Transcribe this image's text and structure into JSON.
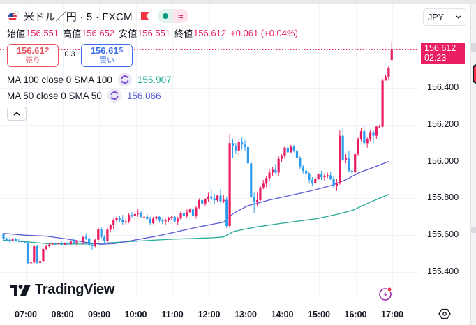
{
  "header": {
    "symbol_title": "米ドル／円 · 5 · FXCM",
    "flag_icon": "us-flag-icon",
    "status_left_icon": "market-open-dot-icon",
    "status_right_icon": "delayed-approx-icon",
    "status_right_glyph": "≈"
  },
  "ohlc": {
    "open_label": "始値",
    "open": "156.551",
    "high_label": "高値",
    "high": "156.652",
    "low_label": "安値",
    "low": "156.551",
    "close_label": "終値",
    "close": "156.612",
    "change": "+0.061 (+0.04%)"
  },
  "trade": {
    "sell_price_main": "156.61",
    "sell_price_pip": "2",
    "sell_label": "売り",
    "spread": "0.3",
    "buy_price_main": "156.61",
    "buy_price_pip": "5",
    "buy_label": "買い"
  },
  "indicators": [
    {
      "label": "MA 100 close 0 SMA 100",
      "value": "155.907",
      "color": "#22ab94"
    },
    {
      "label": "MA 50 close 0 SMA 50",
      "value": "156.066",
      "color": "#5b5bd6"
    }
  ],
  "collapse_glyph": "︿",
  "currency_select": {
    "value": "JPY",
    "chevron": "⌄"
  },
  "price_tag": {
    "price": "156.612",
    "countdown": "02:23",
    "color": "#e91e63"
  },
  "branding": {
    "name": "TradingView"
  },
  "colors": {
    "up": "#e91e63",
    "down": "#2d9cf0",
    "ma100": "#22ab94",
    "ma50": "#5b5bd6",
    "grid": "#f0f3fa"
  },
  "chart_data": {
    "type": "candlestick",
    "title": "米ドル／円 · 5 · FXCM",
    "interval": "5 minutes",
    "yaxis_ticks": [
      "156.400",
      "156.200",
      "156.000",
      "155.800",
      "155.600",
      "155.400"
    ],
    "xaxis_ticks": [
      "07:00",
      "08:00",
      "09:00",
      "10:00",
      "11:00",
      "12:00",
      "13:00",
      "14:00",
      "15:00",
      "16:00",
      "17:00"
    ],
    "ylim": [
      155.28,
      156.72
    ],
    "last_price": 156.612,
    "series": [
      {
        "name": "MA 100 close 0 SMA 100",
        "type": "line",
        "last": 155.907,
        "points": [
          [
            0,
            155.573
          ],
          [
            30,
            155.565
          ],
          [
            60,
            155.555
          ],
          [
            90,
            155.552
          ],
          [
            120,
            155.552
          ],
          [
            150,
            155.558
          ],
          [
            180,
            155.565
          ],
          [
            210,
            155.572
          ],
          [
            240,
            155.578
          ],
          [
            270,
            155.582
          ],
          [
            300,
            155.586
          ],
          [
            315,
            155.59
          ],
          [
            330,
            155.62
          ],
          [
            360,
            155.643
          ],
          [
            390,
            155.66
          ],
          [
            420,
            155.675
          ],
          [
            450,
            155.69
          ],
          [
            480,
            155.715
          ],
          [
            500,
            155.735
          ],
          [
            520,
            155.77
          ],
          [
            552,
            155.822
          ]
        ]
      },
      {
        "name": "MA 50 close 0 SMA 50",
        "type": "line",
        "last": 156.066,
        "points": [
          [
            0,
            155.61
          ],
          [
            30,
            155.6
          ],
          [
            60,
            155.595
          ],
          [
            90,
            155.58
          ],
          [
            120,
            155.56
          ],
          [
            140,
            155.55
          ],
          [
            160,
            155.555
          ],
          [
            190,
            155.575
          ],
          [
            220,
            155.595
          ],
          [
            250,
            155.62
          ],
          [
            280,
            155.645
          ],
          [
            300,
            155.66
          ],
          [
            315,
            155.67
          ],
          [
            330,
            155.72
          ],
          [
            350,
            155.76
          ],
          [
            380,
            155.79
          ],
          [
            410,
            155.815
          ],
          [
            440,
            155.84
          ],
          [
            470,
            155.87
          ],
          [
            490,
            155.9
          ],
          [
            510,
            155.94
          ],
          [
            530,
            155.968
          ],
          [
            552,
            156.0
          ]
        ]
      }
    ],
    "candles": [
      [
        155.605,
        155.61,
        155.575,
        155.578
      ],
      [
        155.578,
        155.588,
        155.57,
        155.575
      ],
      [
        155.575,
        155.585,
        155.56,
        155.572
      ],
      [
        155.572,
        155.583,
        155.565,
        155.578
      ],
      [
        155.578,
        155.585,
        155.566,
        155.57
      ],
      [
        155.57,
        155.582,
        155.562,
        155.568
      ],
      [
        155.568,
        155.578,
        155.56,
        155.562
      ],
      [
        155.562,
        155.57,
        155.555,
        155.558
      ],
      [
        155.558,
        155.563,
        155.445,
        155.448
      ],
      [
        155.448,
        155.46,
        155.44,
        155.452
      ],
      [
        155.452,
        155.545,
        155.44,
        155.54
      ],
      [
        155.54,
        155.545,
        155.445,
        155.45
      ],
      [
        155.45,
        155.465,
        155.444,
        155.46
      ],
      [
        155.46,
        155.53,
        155.455,
        155.525
      ],
      [
        155.525,
        155.545,
        155.52,
        155.54
      ],
      [
        155.54,
        155.556,
        155.535,
        155.55
      ],
      [
        155.55,
        155.558,
        155.545,
        155.553
      ],
      [
        155.553,
        155.56,
        155.548,
        155.552
      ],
      [
        155.552,
        155.56,
        155.549,
        155.555
      ],
      [
        155.555,
        155.565,
        155.545,
        155.547
      ],
      [
        155.547,
        155.56,
        155.545,
        155.556
      ],
      [
        155.556,
        155.562,
        155.55,
        155.553
      ],
      [
        155.553,
        155.57,
        155.547,
        155.565
      ],
      [
        155.565,
        155.583,
        155.55,
        155.555
      ],
      [
        155.555,
        155.575,
        155.54,
        155.57
      ],
      [
        155.57,
        155.585,
        155.56,
        155.565
      ],
      [
        155.565,
        155.595,
        155.55,
        155.59
      ],
      [
        155.59,
        155.61,
        155.575,
        155.583
      ],
      [
        155.583,
        155.59,
        155.525,
        155.545
      ],
      [
        155.545,
        155.555,
        155.52,
        155.54
      ],
      [
        155.54,
        155.58,
        155.535,
        155.575
      ],
      [
        155.575,
        155.64,
        155.56,
        155.635
      ],
      [
        155.635,
        155.645,
        155.58,
        155.59
      ],
      [
        155.59,
        155.6,
        155.56,
        155.57
      ],
      [
        155.57,
        155.64,
        155.56,
        155.63
      ],
      [
        155.63,
        155.66,
        155.615,
        155.655
      ],
      [
        155.655,
        155.69,
        155.635,
        155.68
      ],
      [
        155.68,
        155.7,
        155.67,
        155.695
      ],
      [
        155.695,
        155.705,
        155.67,
        155.685
      ],
      [
        155.685,
        155.71,
        155.655,
        155.67
      ],
      [
        155.67,
        155.69,
        155.655,
        155.675
      ],
      [
        155.675,
        155.72,
        155.665,
        155.71
      ],
      [
        155.71,
        155.725,
        155.695,
        155.705
      ],
      [
        155.705,
        155.735,
        155.68,
        155.715
      ],
      [
        155.715,
        155.74,
        155.7,
        155.72
      ],
      [
        155.72,
        155.73,
        155.695,
        155.7
      ],
      [
        155.7,
        155.712,
        155.69,
        155.7
      ],
      [
        155.7,
        155.715,
        155.68,
        155.688
      ],
      [
        155.688,
        155.7,
        155.655,
        155.665
      ],
      [
        155.665,
        155.7,
        155.66,
        155.69
      ],
      [
        155.69,
        155.705,
        155.68,
        155.7
      ],
      [
        155.7,
        155.705,
        155.67,
        155.68
      ],
      [
        155.68,
        155.69,
        155.66,
        155.675
      ],
      [
        155.675,
        155.69,
        155.655,
        155.68
      ],
      [
        155.68,
        155.7,
        155.67,
        155.695
      ],
      [
        155.695,
        155.705,
        155.68,
        155.7
      ],
      [
        155.7,
        155.705,
        155.67,
        155.675
      ],
      [
        155.675,
        155.7,
        155.655,
        155.69
      ],
      [
        155.69,
        155.73,
        155.68,
        155.72
      ],
      [
        155.72,
        155.735,
        155.7,
        155.705
      ],
      [
        155.705,
        155.74,
        155.695,
        155.725
      ],
      [
        155.725,
        155.745,
        155.72,
        155.74
      ],
      [
        155.74,
        155.75,
        155.7,
        155.705
      ],
      [
        155.705,
        155.76,
        155.69,
        155.75
      ],
      [
        155.75,
        155.8,
        155.74,
        155.79
      ],
      [
        155.79,
        155.8,
        155.765,
        155.772
      ],
      [
        155.772,
        155.8,
        155.76,
        155.795
      ],
      [
        155.795,
        155.83,
        155.78,
        155.81
      ],
      [
        155.81,
        155.85,
        155.79,
        155.8
      ],
      [
        155.8,
        155.825,
        155.77,
        155.79
      ],
      [
        155.79,
        155.82,
        155.78,
        155.815
      ],
      [
        155.815,
        155.85,
        155.775,
        155.785
      ],
      [
        155.785,
        155.82,
        155.775,
        155.792
      ],
      [
        155.792,
        155.81,
        155.64,
        155.65
      ],
      [
        155.65,
        156.15,
        155.64,
        156.1
      ],
      [
        156.1,
        156.12,
        156.02,
        156.085
      ],
      [
        156.085,
        156.1,
        156.04,
        156.06
      ],
      [
        156.06,
        156.12,
        156.03,
        156.105
      ],
      [
        156.105,
        156.13,
        156.065,
        156.092
      ],
      [
        156.092,
        156.115,
        156.055,
        156.078
      ],
      [
        156.078,
        156.095,
        155.98,
        155.99
      ],
      [
        155.99,
        156.0,
        155.8,
        155.805
      ],
      [
        155.805,
        155.83,
        155.72,
        155.78
      ],
      [
        155.78,
        155.83,
        155.76,
        155.79
      ],
      [
        155.79,
        155.87,
        155.78,
        155.86
      ],
      [
        155.86,
        155.9,
        155.85,
        155.88
      ],
      [
        155.88,
        155.92,
        155.86,
        155.91
      ],
      [
        155.91,
        155.96,
        155.895,
        155.94
      ],
      [
        155.94,
        155.97,
        155.92,
        155.955
      ],
      [
        155.955,
        155.985,
        155.935,
        155.94
      ],
      [
        155.94,
        156.03,
        155.92,
        156.015
      ],
      [
        156.015,
        156.04,
        155.995,
        156.03
      ],
      [
        156.03,
        156.085,
        156.015,
        156.075
      ],
      [
        156.075,
        156.095,
        156.04,
        156.05
      ],
      [
        156.05,
        156.09,
        156.045,
        156.08
      ],
      [
        156.08,
        156.09,
        156.05,
        156.06
      ],
      [
        156.06,
        156.075,
        156.01,
        156.02
      ],
      [
        156.02,
        156.03,
        155.96,
        155.97
      ],
      [
        155.97,
        155.98,
        155.935,
        155.95
      ],
      [
        155.95,
        155.965,
        155.92,
        155.935
      ],
      [
        155.935,
        155.945,
        155.88,
        155.9
      ],
      [
        155.9,
        155.915,
        155.87,
        155.885
      ],
      [
        155.885,
        155.915,
        155.88,
        155.905
      ],
      [
        155.905,
        155.935,
        155.9,
        155.93
      ],
      [
        155.93,
        155.95,
        155.9,
        155.915
      ],
      [
        155.915,
        155.935,
        155.895,
        155.92
      ],
      [
        155.92,
        155.94,
        155.91,
        155.925
      ],
      [
        155.925,
        155.945,
        155.9,
        155.905
      ],
      [
        155.905,
        155.92,
        155.855,
        155.87
      ],
      [
        155.87,
        155.905,
        155.84,
        155.88
      ],
      [
        155.88,
        156.17,
        155.875,
        156.14
      ],
      [
        156.14,
        156.18,
        156.0,
        156.01
      ],
      [
        156.01,
        156.04,
        155.99,
        156.02
      ],
      [
        156.02,
        156.06,
        155.94,
        155.95
      ],
      [
        155.95,
        155.96,
        155.93,
        155.945
      ],
      [
        155.945,
        156.05,
        155.935,
        156.04
      ],
      [
        156.04,
        156.13,
        156.03,
        156.12
      ],
      [
        156.12,
        156.18,
        156.11,
        156.165
      ],
      [
        156.165,
        156.195,
        156.09,
        156.1
      ],
      [
        156.1,
        156.13,
        156.075,
        156.12
      ],
      [
        156.12,
        156.17,
        156.11,
        156.16
      ],
      [
        156.16,
        156.17,
        156.1,
        156.14
      ],
      [
        156.14,
        156.195,
        156.12,
        156.19
      ],
      [
        156.19,
        156.2,
        156.18,
        156.19
      ],
      [
        156.19,
        156.45,
        156.185,
        156.44
      ],
      [
        156.44,
        156.47,
        156.44,
        156.46
      ],
      [
        156.46,
        156.52,
        156.44,
        156.51
      ],
      [
        156.551,
        156.652,
        156.551,
        156.612
      ]
    ]
  }
}
